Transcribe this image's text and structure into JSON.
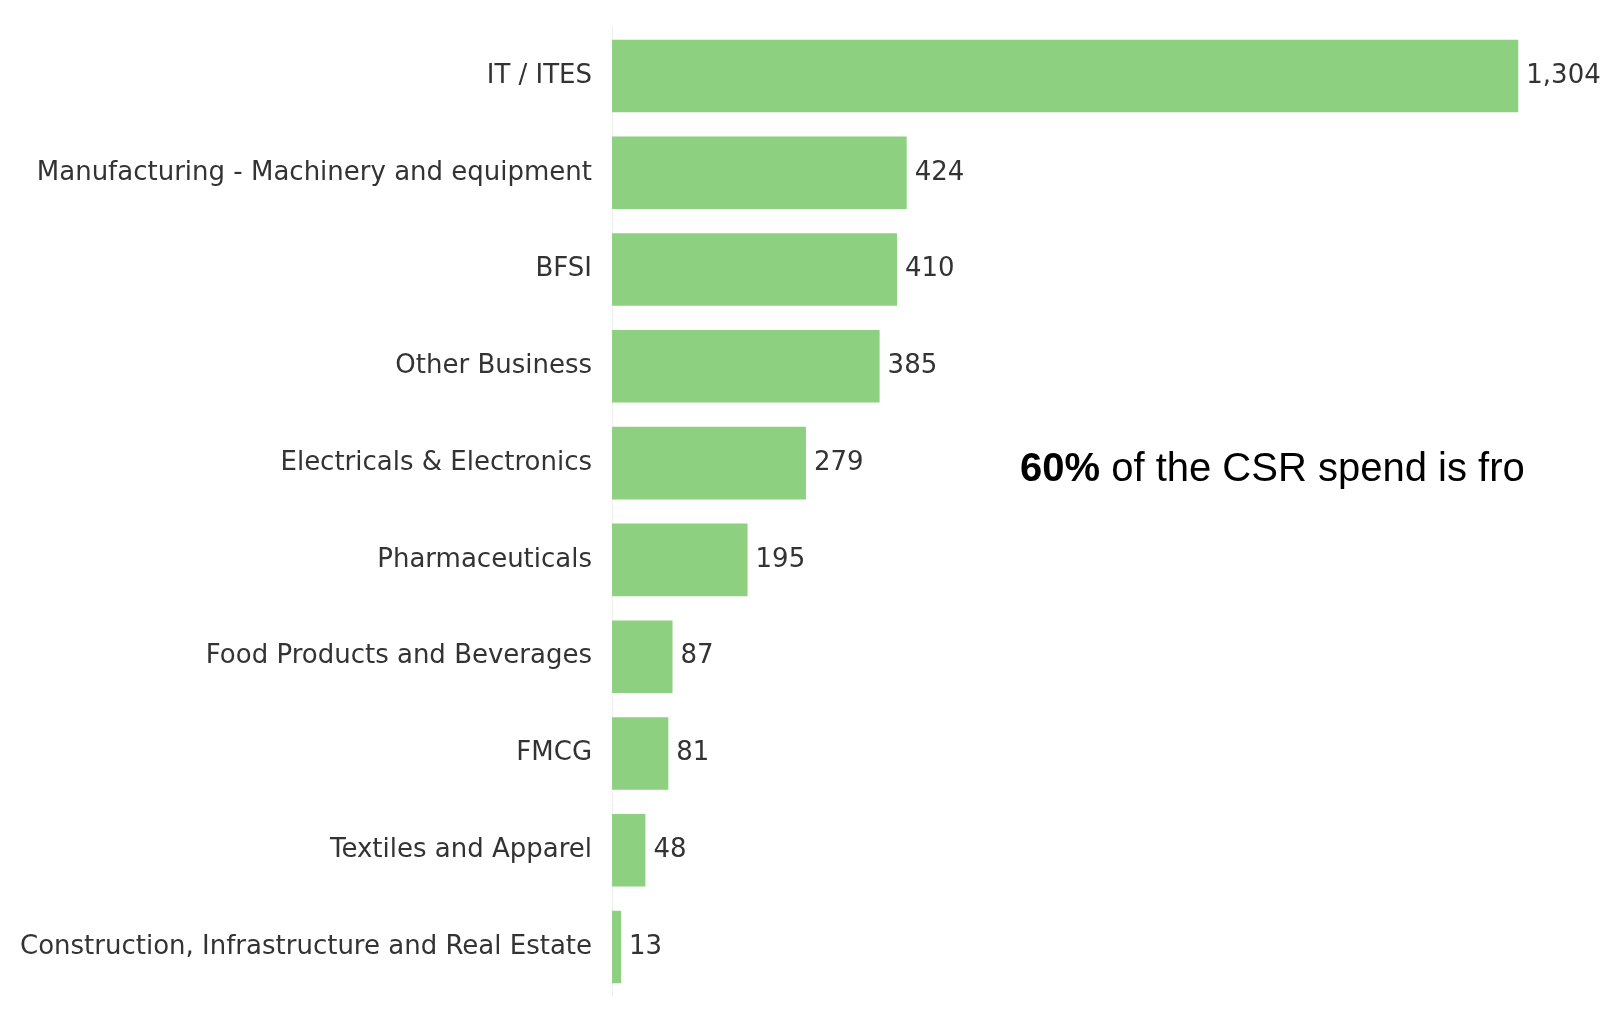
{
  "chart_data": {
    "type": "bar",
    "orientation": "horizontal",
    "categories": [
      "IT / ITES",
      "Manufacturing - Machinery and equipment",
      "BFSI",
      "Other Business",
      "Electricals & Electronics",
      "Pharmaceuticals",
      "Food Products and Beverages",
      "FMCG",
      "Textiles and Apparel",
      "Construction, Infrastructure and Real Estate"
    ],
    "values": [
      1304,
      424,
      410,
      385,
      279,
      195,
      87,
      81,
      48,
      13
    ],
    "value_labels": [
      "1,304",
      "424",
      "410",
      "385",
      "279",
      "195",
      "87",
      "81",
      "48",
      "13"
    ],
    "color": "#8dd07f",
    "grid": false,
    "legend": false,
    "annotations": [
      "60% of the CSR spend is fro"
    ]
  }
}
